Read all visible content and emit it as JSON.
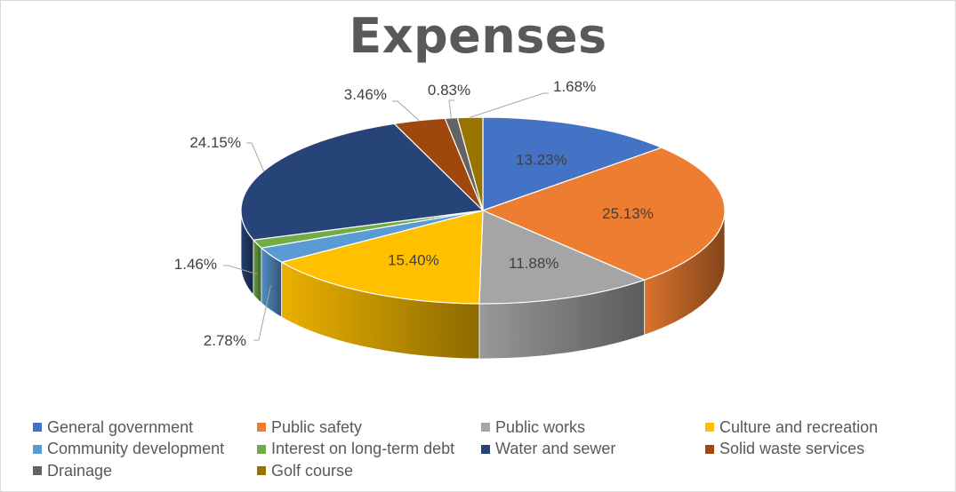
{
  "chart_data": {
    "type": "pie",
    "title": "Expenses",
    "legend_position": "bottom",
    "slices": [
      {
        "label": "General government",
        "value": 13.23,
        "value_label": "13.23%",
        "color": "#4472c4"
      },
      {
        "label": "Public safety",
        "value": 25.13,
        "value_label": "25.13%",
        "color": "#ed7d31"
      },
      {
        "label": "Public works",
        "value": 11.88,
        "value_label": "11.88%",
        "color": "#a5a5a5"
      },
      {
        "label": "Culture and recreation",
        "value": 15.4,
        "value_label": "15.40%",
        "color": "#ffc000"
      },
      {
        "label": "Community development",
        "value": 2.78,
        "value_label": "2.78%",
        "color": "#5b9bd5"
      },
      {
        "label": "Interest on long-term debt",
        "value": 1.46,
        "value_label": "1.46%",
        "color": "#70ad47"
      },
      {
        "label": "Water and sewer",
        "value": 24.15,
        "value_label": "24.15%",
        "color": "#264478"
      },
      {
        "label": "Solid waste services",
        "value": 3.46,
        "value_label": "3.46%",
        "color": "#9e480e"
      },
      {
        "label": "Drainage",
        "value": 0.83,
        "value_label": "0.83%",
        "color": "#636363"
      },
      {
        "label": "Golf course",
        "value": 1.68,
        "value_label": "1.68%",
        "color": "#997300"
      }
    ]
  }
}
